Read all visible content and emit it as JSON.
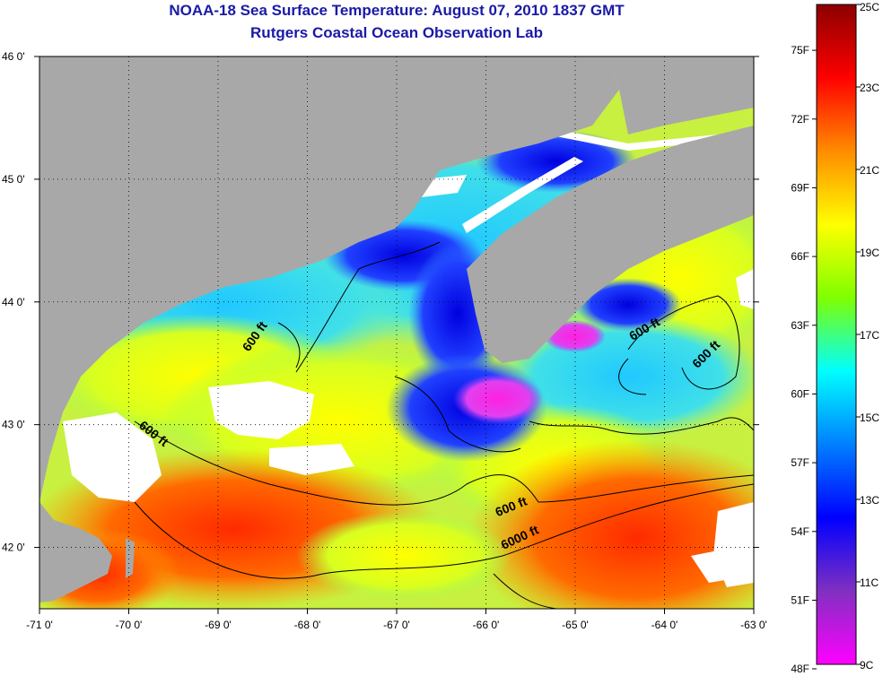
{
  "title": {
    "line1": "NOAA-18 Sea Surface Temperature:  August 07, 2010 1837 GMT",
    "line2": "Rutgers Coastal Ocean Observation Lab"
  },
  "map": {
    "lon_range": [
      -71,
      -63
    ],
    "lat_range": [
      41.5,
      46
    ],
    "lon_ticks": [
      "-71 0'",
      "-70 0'",
      "-69 0'",
      "-68 0'",
      "-67 0'",
      "-66 0'",
      "-65 0'",
      "-64 0'",
      "-63 0'"
    ],
    "lat_ticks": [
      "46 0'",
      "45 0'",
      "44 0'",
      "43 0'",
      "42 0'"
    ],
    "grid": "dotted",
    "contour_labels": [
      {
        "text": "600 ft",
        "lon": -68.55,
        "lat": 43.7,
        "angle": -55
      },
      {
        "text": "600 ft",
        "lon": -69.75,
        "lat": 42.9,
        "angle": 38
      },
      {
        "text": "600 ft",
        "lon": -64.2,
        "lat": 43.75,
        "angle": -30
      },
      {
        "text": "600 ft",
        "lon": -63.5,
        "lat": 43.55,
        "angle": -45
      },
      {
        "text": "600 ft",
        "lon": -65.7,
        "lat": 42.3,
        "angle": -22
      },
      {
        "text": "6000 ft",
        "lon": -65.6,
        "lat": 42.05,
        "angle": -25
      }
    ],
    "land_color": "#a8a8a8",
    "cloud_color": "#ffffff"
  },
  "colorbar": {
    "celsius_labels": [
      "25C",
      "23C",
      "21C",
      "19C",
      "17C",
      "15C",
      "13C",
      "11C",
      "9C"
    ],
    "fahrenheit_labels": [
      "75F",
      "72F",
      "69F",
      "66F",
      "63F",
      "60F",
      "57F",
      "54F",
      "51F",
      "48F"
    ],
    "colors": [
      "#8b0000",
      "#ff0000",
      "#ff8c00",
      "#ffff00",
      "#7fff00",
      "#00ffff",
      "#0080ff",
      "#0000ff",
      "#8030c0",
      "#ff00ff"
    ]
  }
}
